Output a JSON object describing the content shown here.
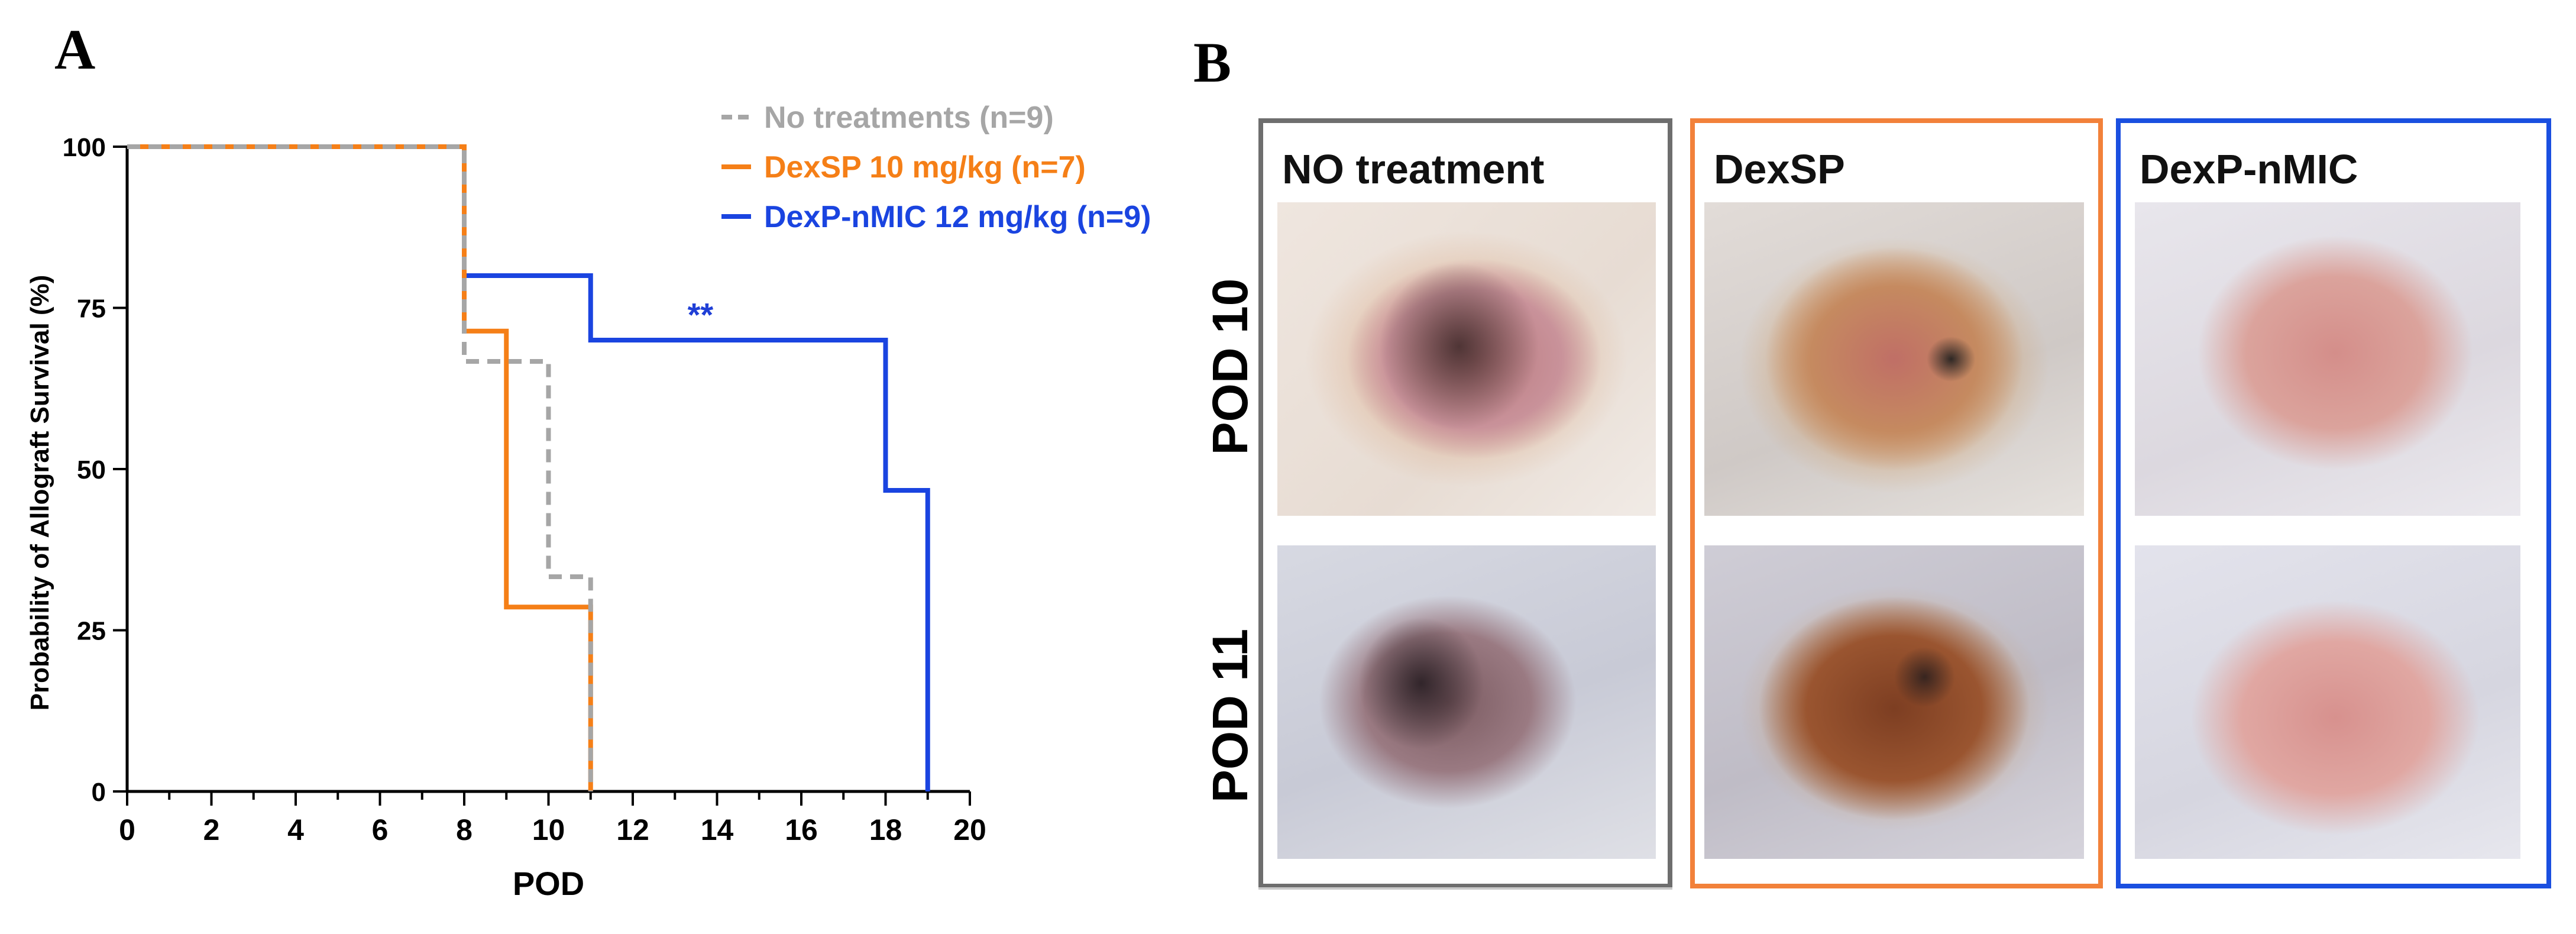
{
  "panel_a_label": "A",
  "panel_b_label": "B",
  "chart_data": {
    "type": "line",
    "step": true,
    "xlabel": "POD",
    "ylabel": "Probability of Allograft Survival (%)",
    "xlim": [
      0,
      20
    ],
    "ylim": [
      0,
      100
    ],
    "xticks": [
      "0",
      "2",
      "4",
      "6",
      "8",
      "10",
      "12",
      "14",
      "16",
      "18",
      "20"
    ],
    "yticks": [
      "0",
      "25",
      "50",
      "75",
      "100"
    ],
    "legend_position": "top-right",
    "annotation": {
      "text": "**",
      "x": 13.3,
      "y": 74,
      "color": "#1f3fd6"
    },
    "series": [
      {
        "name": "No treatments (n=9)",
        "color": "#a6a6a6",
        "dashed": true,
        "legend_prefix": "- -",
        "x": [
          0,
          8,
          8,
          10,
          10,
          11,
          11
        ],
        "y": [
          100,
          100,
          66.7,
          66.7,
          33.3,
          33.3,
          0
        ]
      },
      {
        "name": "DexSP 10 mg/kg (n=7)",
        "color": "#f57f17",
        "dashed": false,
        "x": [
          0,
          8,
          8,
          9,
          9,
          11,
          11
        ],
        "y": [
          100,
          100,
          71.4,
          71.4,
          28.6,
          28.6,
          0
        ]
      },
      {
        "name": "DexP-nMIC 12 mg/kg (n=9)",
        "color": "#1a44e0",
        "dashed": false,
        "x": [
          0,
          8,
          8,
          11,
          11,
          18,
          18,
          19,
          19
        ],
        "y": [
          100,
          100,
          80,
          80,
          70,
          70,
          46.7,
          46.7,
          0
        ]
      }
    ]
  },
  "photos": {
    "groups": [
      {
        "title": "NO treatment",
        "border_color": "#6e6e6e"
      },
      {
        "title": "DexSP",
        "border_color": "#f2813a"
      },
      {
        "title": "DexP-nMIC",
        "border_color": "#1a4fe0"
      }
    ],
    "rows": [
      "POD 10",
      "POD 11"
    ]
  }
}
